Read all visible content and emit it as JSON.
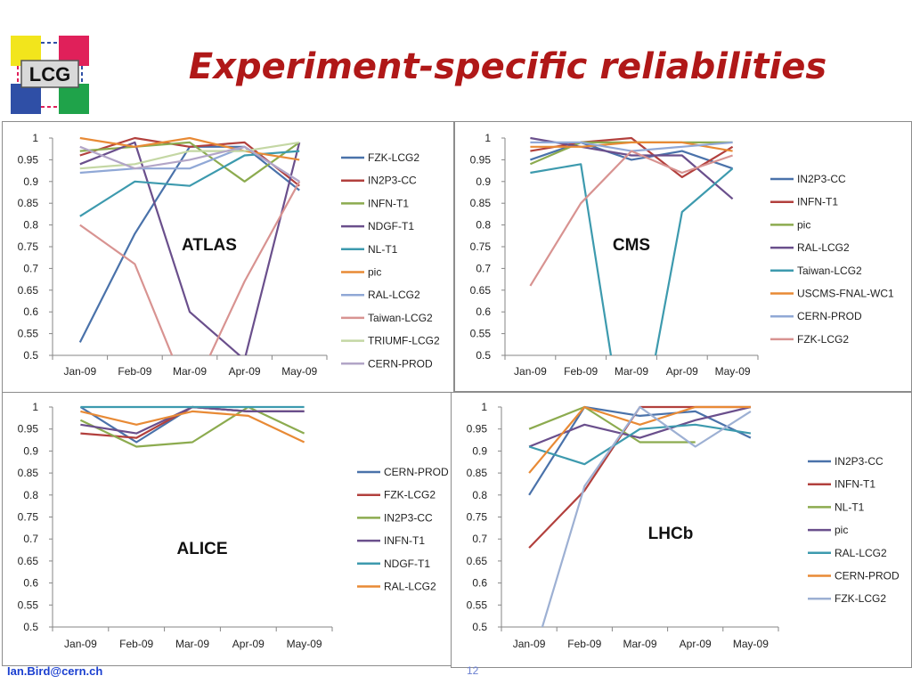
{
  "slide": {
    "title": "Experiment-specific reliabilities",
    "logo_text": "LCG",
    "footer_email": "Ian.Bird@cern.ch",
    "page_number": "12"
  },
  "chart_data": [
    {
      "type": "line",
      "label": "ATLAS",
      "categories": [
        "Jan-09",
        "Feb-09",
        "Mar-09",
        "Apr-09",
        "May-09"
      ],
      "ylim": [
        0.5,
        1
      ],
      "yticks": [
        "0.5",
        "0.55",
        "0.6",
        "0.65",
        "0.7",
        "0.75",
        "0.8",
        "0.85",
        "0.9",
        "0.95",
        "1"
      ],
      "grid": false,
      "legend": "right",
      "series": [
        {
          "name": "FZK-LCG2",
          "color": "#4a72aa",
          "values": [
            0.53,
            0.78,
            0.98,
            0.98,
            0.88
          ]
        },
        {
          "name": "IN2P3-CC",
          "color": "#b2403d",
          "values": [
            0.96,
            1.0,
            0.98,
            0.99,
            0.89
          ]
        },
        {
          "name": "INFN-T1",
          "color": "#8cab4f",
          "values": [
            0.97,
            0.98,
            0.99,
            0.9,
            0.99
          ]
        },
        {
          "name": "NDGF-T1",
          "color": "#6a4f8c",
          "values": [
            0.94,
            0.99,
            0.6,
            0.49,
            0.99
          ]
        },
        {
          "name": "NL-T1",
          "color": "#3d9aae",
          "values": [
            0.82,
            0.9,
            0.89,
            0.96,
            0.97
          ]
        },
        {
          "name": "pic",
          "color": "#e88a35",
          "values": [
            1.0,
            0.98,
            1.0,
            0.97,
            0.95
          ]
        },
        {
          "name": "RAL-LCG2",
          "color": "#90a8d6",
          "values": [
            0.92,
            0.93,
            0.93,
            0.98,
            0.9
          ]
        },
        {
          "name": "Taiwan-LCG2",
          "color": "#d89391",
          "values": [
            0.8,
            0.71,
            0.4,
            0.67,
            0.9
          ]
        },
        {
          "name": "TRIUMF-LCG2",
          "color": "#c4d7a4",
          "values": [
            0.93,
            0.94,
            0.97,
            0.97,
            0.99
          ]
        },
        {
          "name": "CERN-PROD",
          "color": "#b2a5c7",
          "values": [
            0.98,
            0.93,
            0.95,
            0.98,
            0.9
          ]
        }
      ]
    },
    {
      "type": "line",
      "label": "CMS",
      "categories": [
        "Jan-09",
        "Feb-09",
        "Mar-09",
        "Apr-09",
        "May-09"
      ],
      "ylim": [
        0.5,
        1
      ],
      "yticks": [
        "0.5",
        "0.55",
        "0.6",
        "0.65",
        "0.7",
        "0.75",
        "0.8",
        "0.85",
        "0.9",
        "0.95",
        "1"
      ],
      "grid": false,
      "legend": "right",
      "series": [
        {
          "name": "IN2P3-CC",
          "color": "#4a72aa",
          "values": [
            0.95,
            0.99,
            0.95,
            0.97,
            0.93
          ]
        },
        {
          "name": "INFN-T1",
          "color": "#b2403d",
          "values": [
            0.97,
            0.99,
            1.0,
            0.91,
            0.98
          ]
        },
        {
          "name": "pic",
          "color": "#8cab4f",
          "values": [
            0.94,
            0.99,
            0.99,
            0.99,
            0.99
          ]
        },
        {
          "name": "RAL-LCG2",
          "color": "#6a4f8c",
          "values": [
            1.0,
            0.98,
            0.96,
            0.96,
            0.86
          ]
        },
        {
          "name": "Taiwan-LCG2",
          "color": "#3d9aae",
          "values": [
            0.92,
            0.94,
            0.2,
            0.83,
            0.93
          ]
        },
        {
          "name": "USCMS-FNAL-WC1",
          "color": "#e88a35",
          "values": [
            0.98,
            0.98,
            0.99,
            0.99,
            0.97
          ]
        },
        {
          "name": "CERN-PROD",
          "color": "#90a8d6",
          "values": [
            0.99,
            0.99,
            0.97,
            0.98,
            0.99
          ]
        },
        {
          "name": "FZK-LCG2",
          "color": "#d89391",
          "values": [
            0.66,
            0.85,
            0.97,
            0.92,
            0.96
          ]
        }
      ]
    },
    {
      "type": "line",
      "label": "ALICE",
      "categories": [
        "Jan-09",
        "Feb-09",
        "Mar-09",
        "Apr-09",
        "May-09"
      ],
      "ylim": [
        0.5,
        1
      ],
      "yticks": [
        "0.5",
        "0.55",
        "0.6",
        "0.65",
        "0.7",
        "0.75",
        "0.8",
        "0.85",
        "0.9",
        "0.95",
        "1"
      ],
      "grid": false,
      "legend": "right",
      "series": [
        {
          "name": "CERN-PROD",
          "color": "#4a72aa",
          "values": [
            1.0,
            0.92,
            1.0,
            0.99,
            0.99
          ]
        },
        {
          "name": "FZK-LCG2",
          "color": "#b2403d",
          "values": [
            0.94,
            0.93,
            1.0,
            0.99,
            0.99
          ]
        },
        {
          "name": "IN2P3-CC",
          "color": "#8cab4f",
          "values": [
            0.97,
            0.91,
            0.92,
            1.0,
            0.94
          ]
        },
        {
          "name": "INFN-T1",
          "color": "#6a4f8c",
          "values": [
            0.96,
            0.94,
            1.0,
            0.99,
            0.99
          ]
        },
        {
          "name": "NDGF-T1",
          "color": "#3d9aae",
          "values": [
            1.0,
            1.0,
            1.0,
            1.0,
            1.0
          ]
        },
        {
          "name": "RAL-LCG2",
          "color": "#e88a35",
          "values": [
            0.99,
            0.96,
            0.99,
            0.98,
            0.92
          ]
        }
      ]
    },
    {
      "type": "line",
      "label": "LHCb",
      "categories": [
        "Jan-09",
        "Feb-09",
        "Mar-09",
        "Apr-09",
        "May-09"
      ],
      "ylim": [
        0.5,
        1
      ],
      "yticks": [
        "0.5",
        "0.55",
        "0.6",
        "0.65",
        "0.7",
        "0.75",
        "0.8",
        "0.85",
        "0.9",
        "0.95",
        "1"
      ],
      "grid": false,
      "legend": "right",
      "series": [
        {
          "name": "IN2P3-CC",
          "color": "#4a72aa",
          "values": [
            0.8,
            1.0,
            0.98,
            0.99,
            0.93
          ]
        },
        {
          "name": "INFN-T1",
          "color": "#b2403d",
          "values": [
            0.68,
            0.81,
            1.0,
            1.0,
            1.0
          ]
        },
        {
          "name": "NL-T1",
          "color": "#8cab4f",
          "values": [
            0.95,
            1.0,
            0.92,
            0.92,
            null
          ]
        },
        {
          "name": "pic",
          "color": "#6a4f8c",
          "values": [
            0.91,
            0.96,
            0.93,
            0.97,
            1.0
          ]
        },
        {
          "name": "RAL-LCG2",
          "color": "#3d9aae",
          "values": [
            0.91,
            0.87,
            0.95,
            0.96,
            0.94
          ]
        },
        {
          "name": "CERN-PROD",
          "color": "#e88a35",
          "values": [
            0.85,
            1.0,
            0.96,
            1.0,
            1.0
          ]
        },
        {
          "name": "FZK-LCG2",
          "color": "#9db0d3",
          "values": [
            0.4,
            0.82,
            1.0,
            0.91,
            0.99
          ]
        }
      ]
    }
  ]
}
